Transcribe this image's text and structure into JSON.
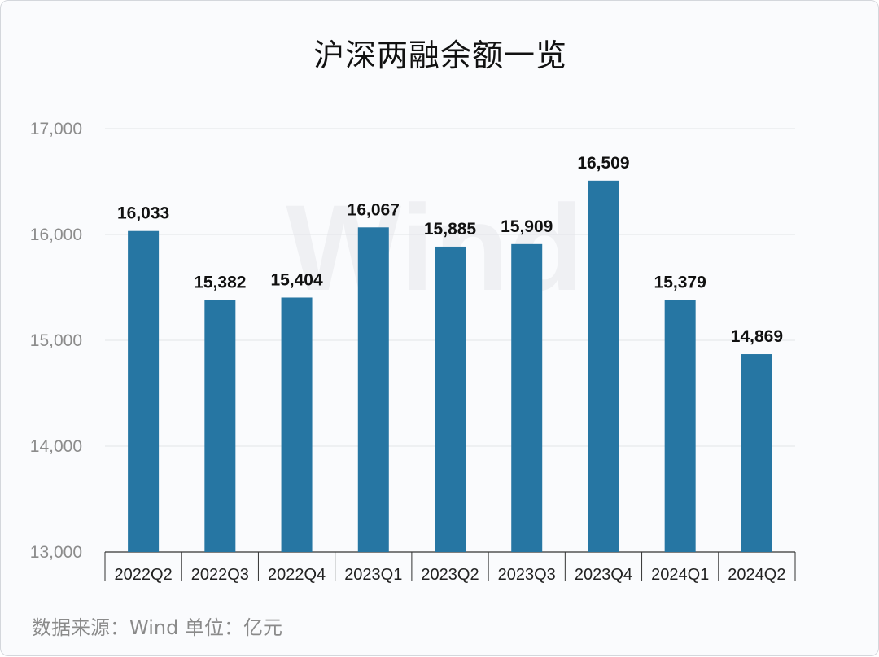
{
  "chart_data": {
    "type": "bar",
    "title": "沪深两融余额一览",
    "categories": [
      "2022Q2",
      "2022Q3",
      "2022Q4",
      "2023Q1",
      "2023Q2",
      "2023Q3",
      "2023Q4",
      "2024Q1",
      "2024Q2"
    ],
    "values": [
      16033,
      15382,
      15404,
      16067,
      15885,
      15909,
      16509,
      15379,
      14869
    ],
    "value_labels": [
      "16,033",
      "15,382",
      "15,404",
      "16,067",
      "15,885",
      "15,909",
      "16,509",
      "15,379",
      "14,869"
    ],
    "ylim": [
      13000,
      17000
    ],
    "yticks": [
      13000,
      14000,
      15000,
      16000,
      17000
    ],
    "ytick_labels": [
      "13,000",
      "14,000",
      "15,000",
      "16,000",
      "17,000"
    ],
    "xlabel": "",
    "ylabel": "",
    "grid": true,
    "legend": "none",
    "bar_color": "#2676a3",
    "watermark": "Wind"
  },
  "footer": "数据来源：Wind  单位：亿元"
}
